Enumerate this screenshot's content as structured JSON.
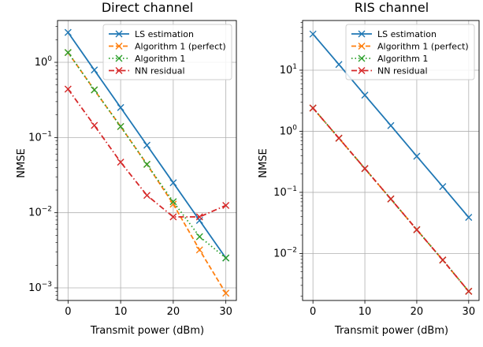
{
  "chart_data": [
    {
      "type": "line",
      "title": "Direct channel",
      "xlabel": "Transmit power (dBm)",
      "ylabel": "NMSE",
      "yscale": "log",
      "grid": true,
      "legend_position": "top-right",
      "x": [
        0,
        5,
        10,
        15,
        20,
        25,
        30
      ],
      "xlim": [
        -2,
        32
      ],
      "ylim": [
        0.00068,
        3.6
      ],
      "xticks": [
        "0",
        "10",
        "20",
        "30"
      ],
      "yticks": [
        "10^-3",
        "10^-2",
        "10^-1",
        "10^0"
      ],
      "series": [
        {
          "name": "LS estimation",
          "color": "#1f77b4",
          "linestyle": "solid",
          "marker": "x",
          "values": [
            2.5,
            0.79,
            0.25,
            0.079,
            0.025,
            0.0079,
            0.0025
          ]
        },
        {
          "name": "Algorithm 1 (perfect)",
          "color": "#ff7f0e",
          "linestyle": "dashed",
          "marker": "x",
          "values": [
            1.35,
            0.43,
            0.14,
            0.044,
            0.013,
            0.0032,
            0.00085
          ]
        },
        {
          "name": "Algorithm 1",
          "color": "#2ca02c",
          "linestyle": "dotted",
          "marker": "x",
          "values": [
            1.35,
            0.43,
            0.14,
            0.044,
            0.014,
            0.0048,
            0.0025
          ]
        },
        {
          "name": "NN residual",
          "color": "#d62728",
          "linestyle": "dashdot",
          "marker": "x",
          "values": [
            0.44,
            0.145,
            0.047,
            0.017,
            0.0088,
            0.0088,
            0.0125
          ]
        }
      ]
    },
    {
      "type": "line",
      "title": "RIS channel",
      "xlabel": "Transmit power (dBm)",
      "ylabel": "NMSE",
      "yscale": "log",
      "grid": true,
      "legend_position": "top-right",
      "x": [
        0,
        5,
        10,
        15,
        20,
        25,
        30
      ],
      "xlim": [
        -2,
        32
      ],
      "ylim": [
        0.0017,
        65
      ],
      "xticks": [
        "0",
        "10",
        "20",
        "30"
      ],
      "yticks": [
        "10^-2",
        "10^-1",
        "10^0",
        "10^1"
      ],
      "series": [
        {
          "name": "LS estimation",
          "color": "#1f77b4",
          "linestyle": "solid",
          "marker": "x",
          "values": [
            39,
            12.4,
            3.9,
            1.24,
            0.39,
            0.124,
            0.039
          ]
        },
        {
          "name": "Algorithm 1 (perfect)",
          "color": "#ff7f0e",
          "linestyle": "dashed",
          "marker": "x",
          "values": [
            2.4,
            0.77,
            0.245,
            0.078,
            0.0245,
            0.0078,
            0.0024
          ]
        },
        {
          "name": "Algorithm 1",
          "color": "#2ca02c",
          "linestyle": "dotted",
          "marker": "x",
          "values": [
            2.4,
            0.77,
            0.245,
            0.078,
            0.0245,
            0.0078,
            0.0024
          ]
        },
        {
          "name": "NN residual",
          "color": "#d62728",
          "linestyle": "dashdot",
          "marker": "x",
          "values": [
            2.4,
            0.77,
            0.245,
            0.078,
            0.0245,
            0.0078,
            0.0024
          ]
        }
      ]
    }
  ]
}
